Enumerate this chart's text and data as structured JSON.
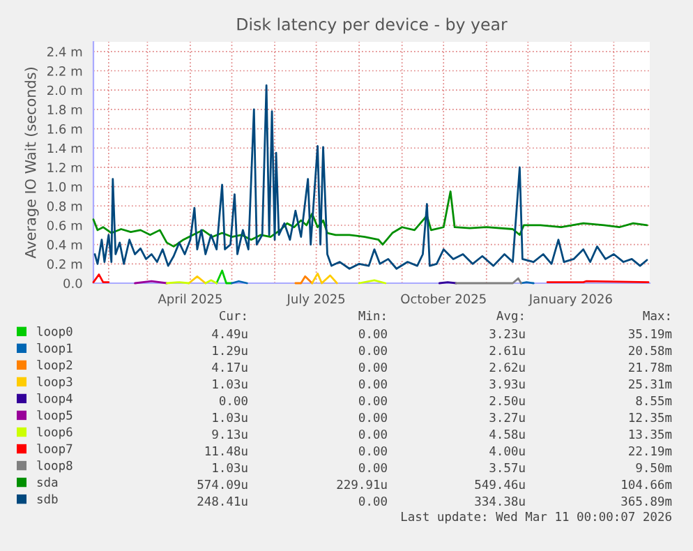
{
  "chart_data": {
    "type": "line",
    "title": "Disk latency per device - by year",
    "ylabel": "Average IO Wait (seconds)",
    "xlim": [
      "2025-01-21",
      "2026-02-27"
    ],
    "ylim": [
      0,
      2.5
    ],
    "xticks": [
      {
        "value": "2025-02-01",
        "label": null
      },
      {
        "value": "2025-03-01",
        "label": null
      },
      {
        "value": "2025-04-01",
        "label": "April 2025"
      },
      {
        "value": "2025-05-01",
        "label": null
      },
      {
        "value": "2025-06-01",
        "label": null
      },
      {
        "value": "2025-07-01",
        "label": "July 2025"
      },
      {
        "value": "2025-08-01",
        "label": null
      },
      {
        "value": "2025-09-01",
        "label": null
      },
      {
        "value": "2025-10-01",
        "label": "October 2025"
      },
      {
        "value": "2025-11-01",
        "label": null
      },
      {
        "value": "2025-12-01",
        "label": null
      },
      {
        "value": "2026-01-01",
        "label": "January 2026"
      },
      {
        "value": "2026-02-01",
        "label": null
      }
    ],
    "yticks": [
      {
        "value": 0,
        "label": "0.0"
      },
      {
        "value": 0.2,
        "label": "0.2 m"
      },
      {
        "value": 0.4,
        "label": "0.4 m"
      },
      {
        "value": 0.6,
        "label": "0.6 m"
      },
      {
        "value": 0.8,
        "label": "0.8 m"
      },
      {
        "value": 1.0,
        "label": "1.0 m"
      },
      {
        "value": 1.2,
        "label": "1.2 m"
      },
      {
        "value": 1.4,
        "label": "1.4 m"
      },
      {
        "value": 1.6,
        "label": "1.6 m"
      },
      {
        "value": 1.8,
        "label": "1.8 m"
      },
      {
        "value": 2.0,
        "label": "2.0 m"
      },
      {
        "value": 2.2,
        "label": "2.2 m"
      },
      {
        "value": 2.4,
        "label": "2.4 m"
      }
    ],
    "grid": true,
    "legend": "bottom",
    "series": [
      {
        "name": "loop0",
        "color": "#00cc00",
        "x": [
          "2025-04-20",
          "2025-04-24",
          "2025-04-27",
          "2025-05-01"
        ],
        "values": [
          0.0,
          0.13,
          0.0,
          0.0
        ]
      },
      {
        "name": "loop1",
        "color": "#0066b3",
        "x": [
          "2025-05-01",
          "2025-05-06",
          "2025-05-12",
          "2025-08-30",
          "2025-11-26",
          "2025-11-30",
          "2025-12-05"
        ],
        "values": [
          0.0,
          0.02,
          0.0,
          null,
          0.0,
          0.01,
          0.0
        ]
      },
      {
        "name": "loop2",
        "color": "#ff8000",
        "x": [
          "2025-06-16",
          "2025-06-20",
          "2025-06-23",
          "2025-06-28"
        ],
        "values": [
          0.0,
          0.0,
          0.07,
          0.0
        ]
      },
      {
        "name": "loop3",
        "color": "#ffcc00",
        "x": [
          "2025-03-31",
          "2025-04-06",
          "2025-04-12",
          "2025-05-20",
          "2025-06-28",
          "2025-07-02",
          "2025-07-05",
          "2025-07-11",
          "2025-07-16"
        ],
        "values": [
          0.0,
          0.07,
          0.0,
          null,
          0.0,
          0.1,
          0.0,
          0.08,
          0.0
        ]
      },
      {
        "name": "loop4",
        "color": "#330099",
        "x": [
          "2025-09-28",
          "2025-10-04",
          "2025-10-10"
        ],
        "values": [
          0.0,
          0.01,
          0.0
        ]
      },
      {
        "name": "loop5",
        "color": "#990099",
        "x": [
          "2025-02-20",
          "2025-03-04",
          "2025-03-15"
        ],
        "values": [
          0.0,
          0.02,
          0.0
        ]
      },
      {
        "name": "loop6",
        "color": "#ccff00",
        "x": [
          "2025-03-15",
          "2025-03-24",
          "2025-03-31",
          "2025-04-05",
          "2025-04-12",
          "2025-04-16",
          "2025-04-20",
          "2025-06-01",
          "2025-08-01",
          "2025-08-12",
          "2025-08-20"
        ],
        "values": [
          0.0,
          0.01,
          0.0,
          null,
          0.0,
          0.03,
          0.0,
          null,
          0.0,
          0.03,
          0.0
        ]
      },
      {
        "name": "loop7",
        "color": "#ff0000",
        "x": [
          "2025-01-21",
          "2025-01-25",
          "2025-01-28",
          "2025-02-01",
          "2025-07-01",
          "2025-12-15",
          "2026-01-10",
          "2026-01-12",
          "2026-02-26"
        ],
        "values": [
          0.01,
          0.09,
          0.01,
          0.01,
          null,
          0.01,
          0.01,
          0.02,
          0.01
        ]
      },
      {
        "name": "loop8",
        "color": "#808080",
        "x": [
          "2025-10-10",
          "2025-11-20",
          "2025-11-24",
          "2025-11-26"
        ],
        "values": [
          0.0,
          0.0,
          0.05,
          0.0
        ]
      },
      {
        "name": "sda",
        "color": "#008f00",
        "x": [
          "2025-01-21",
          "2025-01-24",
          "2025-01-28",
          "2025-02-03",
          "2025-02-10",
          "2025-02-17",
          "2025-02-24",
          "2025-03-03",
          "2025-03-10",
          "2025-03-15",
          "2025-03-20",
          "2025-03-27",
          "2025-04-03",
          "2025-04-10",
          "2025-04-17",
          "2025-04-24",
          "2025-05-01",
          "2025-05-08",
          "2025-05-15",
          "2025-05-22",
          "2025-05-29",
          "2025-06-05",
          "2025-06-10",
          "2025-06-15",
          "2025-06-20",
          "2025-06-24",
          "2025-06-28",
          "2025-07-02",
          "2025-07-06",
          "2025-07-09",
          "2025-07-15",
          "2025-07-25",
          "2025-08-05",
          "2025-08-15",
          "2025-08-18",
          "2025-08-25",
          "2025-09-01",
          "2025-09-10",
          "2025-09-19",
          "2025-09-22",
          "2025-10-01",
          "2025-10-06",
          "2025-10-09",
          "2025-10-20",
          "2025-11-01",
          "2025-11-20",
          "2025-11-25",
          "2025-11-28",
          "2025-12-10",
          "2025-12-25",
          "2026-01-10",
          "2026-01-25",
          "2026-02-05",
          "2026-02-15",
          "2026-02-25"
        ],
        "values": [
          0.66,
          0.55,
          0.58,
          0.52,
          0.56,
          0.53,
          0.55,
          0.5,
          0.55,
          0.42,
          0.38,
          0.45,
          0.5,
          0.55,
          0.48,
          0.52,
          0.48,
          0.5,
          0.45,
          0.5,
          0.48,
          0.55,
          0.62,
          0.58,
          0.65,
          0.6,
          0.72,
          0.58,
          0.65,
          0.52,
          0.5,
          0.5,
          0.48,
          0.45,
          0.4,
          0.52,
          0.58,
          0.55,
          0.7,
          0.55,
          0.58,
          0.95,
          0.58,
          0.57,
          0.58,
          0.56,
          0.5,
          0.6,
          0.6,
          0.58,
          0.62,
          0.6,
          0.58,
          0.62,
          0.6
        ]
      },
      {
        "name": "sdb",
        "color": "#00487d",
        "x": [
          "2025-01-22",
          "2025-01-24",
          "2025-01-27",
          "2025-01-29",
          "2025-02-01",
          "2025-02-03",
          "2025-02-04",
          "2025-02-06",
          "2025-02-09",
          "2025-02-12",
          "2025-02-16",
          "2025-02-20",
          "2025-02-24",
          "2025-02-28",
          "2025-03-04",
          "2025-03-08",
          "2025-03-12",
          "2025-03-16",
          "2025-03-20",
          "2025-03-24",
          "2025-03-28",
          "2025-04-01",
          "2025-04-04",
          "2025-04-06",
          "2025-04-09",
          "2025-04-12",
          "2025-04-16",
          "2025-04-20",
          "2025-04-24",
          "2025-04-26",
          "2025-04-30",
          "2025-05-03",
          "2025-05-05",
          "2025-05-09",
          "2025-05-13",
          "2025-05-17",
          "2025-05-19",
          "2025-05-23",
          "2025-05-26",
          "2025-05-28",
          "2025-05-30",
          "2025-06-01",
          "2025-06-02",
          "2025-06-04",
          "2025-06-08",
          "2025-06-12",
          "2025-06-16",
          "2025-06-20",
          "2025-06-25",
          "2025-06-27",
          "2025-07-02",
          "2025-07-04",
          "2025-07-06",
          "2025-07-09",
          "2025-07-12",
          "2025-07-18",
          "2025-07-25",
          "2025-08-01",
          "2025-08-08",
          "2025-08-12",
          "2025-08-16",
          "2025-08-22",
          "2025-08-28",
          "2025-09-05",
          "2025-09-12",
          "2025-09-16",
          "2025-09-19",
          "2025-09-21",
          "2025-09-26",
          "2025-10-01",
          "2025-10-08",
          "2025-10-15",
          "2025-10-22",
          "2025-10-29",
          "2025-11-06",
          "2025-11-14",
          "2025-11-20",
          "2025-11-25",
          "2025-11-27",
          "2025-12-05",
          "2025-12-12",
          "2025-12-18",
          "2025-12-23",
          "2025-12-27",
          "2026-01-03",
          "2026-01-10",
          "2026-01-15",
          "2026-01-20",
          "2026-01-26",
          "2026-02-01",
          "2026-02-08",
          "2026-02-14",
          "2026-02-20",
          "2026-02-25"
        ],
        "values": [
          0.3,
          0.2,
          0.45,
          0.22,
          0.5,
          0.22,
          1.08,
          0.3,
          0.42,
          0.2,
          0.45,
          0.3,
          0.36,
          0.25,
          0.3,
          0.22,
          0.35,
          0.18,
          0.28,
          0.42,
          0.3,
          0.45,
          0.78,
          0.35,
          0.55,
          0.3,
          0.5,
          0.35,
          1.02,
          0.35,
          0.4,
          0.92,
          0.3,
          0.55,
          0.35,
          1.8,
          0.4,
          0.5,
          2.05,
          0.5,
          1.78,
          0.45,
          1.35,
          0.5,
          0.62,
          0.45,
          0.75,
          0.48,
          1.08,
          0.4,
          1.42,
          0.4,
          1.41,
          0.3,
          0.18,
          0.22,
          0.15,
          0.2,
          0.18,
          0.35,
          0.2,
          0.25,
          0.15,
          0.22,
          0.18,
          0.3,
          0.82,
          0.18,
          0.2,
          0.35,
          0.25,
          0.3,
          0.2,
          0.28,
          0.18,
          0.3,
          0.22,
          1.2,
          0.25,
          0.22,
          0.3,
          0.2,
          0.45,
          0.22,
          0.25,
          0.35,
          0.22,
          0.38,
          0.25,
          0.3,
          0.22,
          0.25,
          0.18,
          0.24
        ]
      }
    ],
    "annotations": [
      "Cur:",
      "Min:",
      "Avg:",
      "Max:",
      "4.49u",
      "0.00",
      "3.23u",
      "35.19m",
      "1.29u",
      "0.00",
      "2.61u",
      "20.58m",
      "4.17u",
      "0.00",
      "2.62u",
      "21.78m",
      "1.03u",
      "0.00",
      "3.93u",
      "25.31m",
      "0.00",
      "0.00",
      "2.50u",
      "8.55m",
      "1.03u",
      "0.00",
      "3.27u",
      "12.35m",
      "9.13u",
      "0.00",
      "4.58u",
      "13.35m",
      "11.48u",
      "0.00",
      "4.00u",
      "22.19m",
      "1.03u",
      "0.00",
      "3.57u",
      "9.50m",
      "574.09u",
      "229.91u",
      "549.46u",
      "104.66m",
      "248.41u",
      "0.00",
      "334.38u",
      "365.89m",
      "Last update: Wed Mar 11 00:00:07 2026"
    ]
  }
}
